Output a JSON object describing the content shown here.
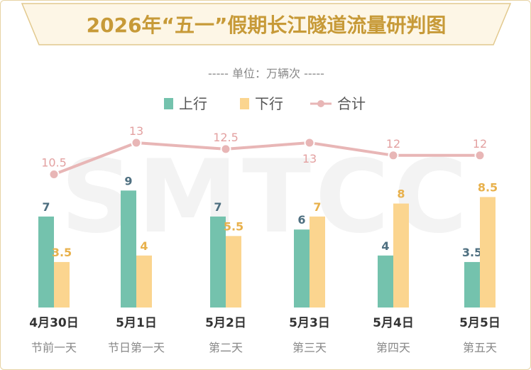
{
  "colors": {
    "up": "#74c2ad",
    "down": "#fbd58f",
    "total_line": "#e8b6b6",
    "total_label": "#e3a1a1",
    "up_label": "#4e6f80",
    "down_label": "#e8b14c",
    "title": "#c79a38",
    "title_bg": "#fdf6e6",
    "title_border": "#e2c98e",
    "watermark": "#f3f3f3"
  },
  "watermark": "SMTCC",
  "chart_data": {
    "type": "bar",
    "title": "2026年“五一”假期长江隧道流量研判图",
    "subtitle": "----- 单位：万辆次 -----",
    "categories": [
      "4月30日",
      "5月1日",
      "5月2日",
      "5月3日",
      "5月4日",
      "5月5日"
    ],
    "subcategories": [
      "节前一天",
      "节日第一天",
      "第二天",
      "第三天",
      "第四天",
      "第五天"
    ],
    "series": [
      {
        "name": "上行",
        "type": "bar",
        "values": [
          7,
          9,
          7,
          6,
          4,
          3.5
        ]
      },
      {
        "name": "下行",
        "type": "bar",
        "values": [
          3.5,
          4,
          5.5,
          7,
          8,
          8.5
        ]
      },
      {
        "name": "合计",
        "type": "line",
        "values": [
          10.5,
          13,
          12.5,
          13,
          12,
          12
        ]
      }
    ],
    "legend_position": "top-center",
    "grid": false
  }
}
